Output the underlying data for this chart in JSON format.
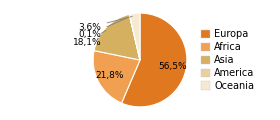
{
  "labels": [
    "Europa",
    "Africa",
    "Asia",
    "America",
    "Oceania"
  ],
  "values": [
    56.5,
    21.8,
    18.1,
    0.1,
    3.6
  ],
  "colors": [
    "#e07820",
    "#f0a050",
    "#d4b060",
    "#e8d0a0",
    "#f5ead0"
  ],
  "startangle": 90,
  "legend_labels": [
    "Europa",
    "Africa",
    "Asia",
    "America",
    "Oceania"
  ],
  "pct_distance": 0.72,
  "font_size_legend": 7,
  "font_size_pct": 6.5,
  "background_color": "#ffffff",
  "outside_labels": [
    {
      "index": 2,
      "label": "18,1%"
    },
    {
      "index": 3,
      "label": "0,1%"
    },
    {
      "index": 4,
      "label": "3,6%"
    }
  ],
  "inside_labels": [
    {
      "index": 0,
      "label": "56,5%"
    },
    {
      "index": 1,
      "label": "21,8%"
    }
  ]
}
